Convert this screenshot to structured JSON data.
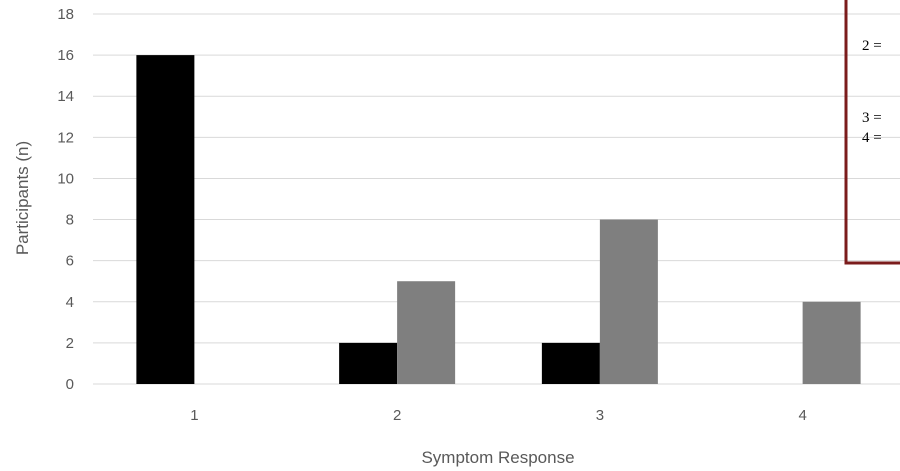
{
  "chart_data": {
    "type": "bar",
    "title": "",
    "xlabel": "Symptom Response",
    "ylabel": "Participants (n)",
    "categories": [
      "1",
      "2",
      "3",
      "4"
    ],
    "ylim": [
      0,
      18
    ],
    "yticks": [
      "0",
      "2",
      "4",
      "6",
      "8",
      "10",
      "12",
      "14",
      "16",
      "18"
    ],
    "grid": true,
    "legend_position": "top-right (cropped)",
    "series": [
      {
        "values": [
          16,
          2,
          2,
          0
        ],
        "color": "#000000"
      },
      {
        "values": [
          0,
          5,
          8,
          4
        ],
        "color": "#7f7f7f"
      }
    ],
    "annotation_box": {
      "border_color": "#7b1c1c",
      "lines": [
        "2 =",
        "3 =",
        "4 ="
      ]
    }
  }
}
